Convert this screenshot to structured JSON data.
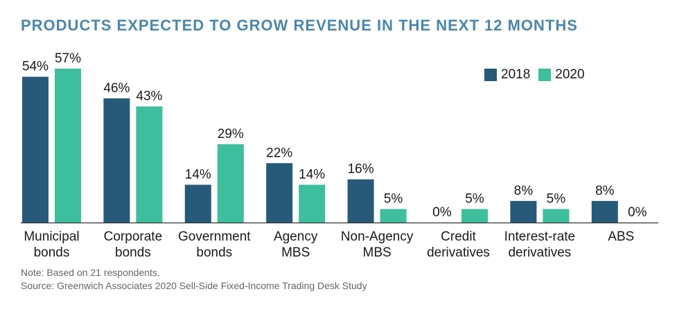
{
  "title": "PRODUCTS EXPECTED TO GROW REVENUE IN THE NEXT 12 MONTHS",
  "note": "Note: Based on 21 respondents.",
  "source": "Source: Greenwich Associates 2020 Sell-Side Fixed-Income Trading Desk Study",
  "colors": {
    "s2018": "#265a78",
    "s2020": "#3dbe9c",
    "title": "#4a86ad"
  },
  "chart_data": {
    "type": "bar",
    "title": "PRODUCTS EXPECTED TO GROW REVENUE IN THE NEXT 12 MONTHS",
    "categories": [
      [
        "Municipal",
        "bonds"
      ],
      [
        "Corporate",
        "bonds"
      ],
      [
        "Government",
        "bonds"
      ],
      [
        "Agency",
        "MBS"
      ],
      [
        "Non-Agency",
        "MBS"
      ],
      [
        "Credit",
        "derivatives"
      ],
      [
        "Interest-rate",
        "derivatives"
      ],
      [
        "ABS"
      ]
    ],
    "series": [
      {
        "name": "2018",
        "values": [
          54,
          46,
          14,
          22,
          16,
          0,
          8,
          8
        ],
        "labels": [
          "54%",
          "46%",
          "14%",
          "22%",
          "16%",
          "0%",
          "8%",
          "8%"
        ]
      },
      {
        "name": "2020",
        "values": [
          57,
          43,
          29,
          14,
          5,
          5,
          5,
          0
        ],
        "labels": [
          "57%",
          "43%",
          "29%",
          "14%",
          "5%",
          "5%",
          "5%",
          "0%"
        ]
      }
    ],
    "ylim": [
      0,
      57
    ],
    "grid": false,
    "legend": "top-right"
  }
}
